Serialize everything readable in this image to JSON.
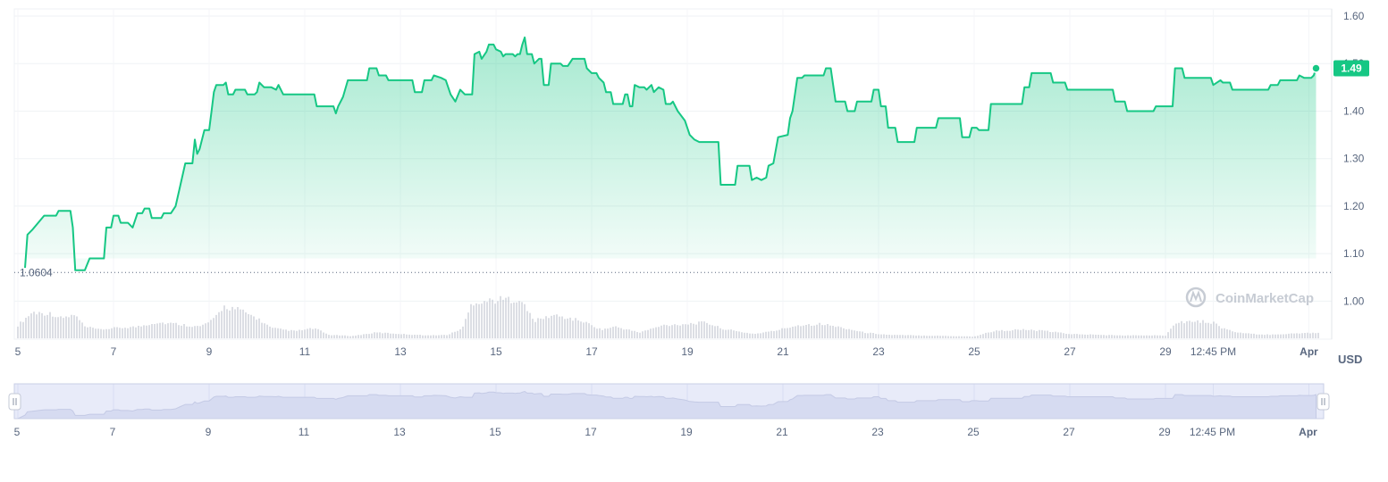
{
  "chart_data": {
    "type": "area",
    "unit": "USD",
    "current_price_label": "1.49",
    "baseline_label": "1.0604",
    "baseline_value": 1.0604,
    "ylim": [
      0.92,
      1.615
    ],
    "y_ticks": [
      {
        "value": 1.6,
        "label": "1.60"
      },
      {
        "value": 1.5,
        "label": "1.50"
      },
      {
        "value": 1.4,
        "label": "1.40"
      },
      {
        "value": 1.3,
        "label": "1.30"
      },
      {
        "value": 1.2,
        "label": "1.20"
      },
      {
        "value": 1.1,
        "label": "1.10"
      },
      {
        "value": 1.0,
        "label": "1.00"
      }
    ],
    "x_ticks": [
      {
        "label": "5",
        "day": 0
      },
      {
        "label": "7",
        "day": 2
      },
      {
        "label": "9",
        "day": 4
      },
      {
        "label": "11",
        "day": 6
      },
      {
        "label": "13",
        "day": 8
      },
      {
        "label": "15",
        "day": 10
      },
      {
        "label": "17",
        "day": 12
      },
      {
        "label": "19",
        "day": 14
      },
      {
        "label": "21",
        "day": 16
      },
      {
        "label": "23",
        "day": 18
      },
      {
        "label": "25",
        "day": 20
      },
      {
        "label": "27",
        "day": 22
      },
      {
        "label": "29",
        "day": 24
      },
      {
        "label": "12:45 PM",
        "day": 25
      },
      {
        "label": "Apr",
        "day": 27,
        "bold": true
      }
    ],
    "series": [
      {
        "color": "#16c784",
        "points": [
          [
            0.15,
            1.07
          ],
          [
            0.2,
            1.14
          ],
          [
            0.3,
            1.15
          ],
          [
            0.55,
            1.18
          ],
          [
            0.8,
            1.18
          ],
          [
            0.85,
            1.19
          ],
          [
            1.1,
            1.19
          ],
          [
            1.15,
            1.155
          ],
          [
            1.2,
            1.065
          ],
          [
            1.4,
            1.065
          ],
          [
            1.5,
            1.09
          ],
          [
            1.8,
            1.09
          ],
          [
            1.85,
            1.155
          ],
          [
            1.95,
            1.155
          ],
          [
            2.0,
            1.18
          ],
          [
            2.1,
            1.18
          ],
          [
            2.15,
            1.165
          ],
          [
            2.3,
            1.165
          ],
          [
            2.4,
            1.155
          ],
          [
            2.5,
            1.185
          ],
          [
            2.6,
            1.185
          ],
          [
            2.65,
            1.195
          ],
          [
            2.75,
            1.195
          ],
          [
            2.8,
            1.175
          ],
          [
            3.0,
            1.175
          ],
          [
            3.05,
            1.185
          ],
          [
            3.2,
            1.185
          ],
          [
            3.3,
            1.2
          ],
          [
            3.4,
            1.245
          ],
          [
            3.5,
            1.29
          ],
          [
            3.65,
            1.29
          ],
          [
            3.7,
            1.34
          ],
          [
            3.75,
            1.31
          ],
          [
            3.8,
            1.32
          ],
          [
            3.9,
            1.36
          ],
          [
            4.0,
            1.36
          ],
          [
            4.05,
            1.4
          ],
          [
            4.1,
            1.44
          ],
          [
            4.15,
            1.455
          ],
          [
            4.3,
            1.455
          ],
          [
            4.35,
            1.46
          ],
          [
            4.4,
            1.435
          ],
          [
            4.5,
            1.435
          ],
          [
            4.55,
            1.445
          ],
          [
            4.75,
            1.445
          ],
          [
            4.8,
            1.435
          ],
          [
            4.95,
            1.435
          ],
          [
            5.0,
            1.44
          ],
          [
            5.05,
            1.46
          ],
          [
            5.15,
            1.45
          ],
          [
            5.3,
            1.45
          ],
          [
            5.4,
            1.445
          ],
          [
            5.45,
            1.455
          ],
          [
            5.55,
            1.435
          ],
          [
            6.2,
            1.435
          ],
          [
            6.25,
            1.41
          ],
          [
            6.6,
            1.41
          ],
          [
            6.65,
            1.395
          ],
          [
            6.7,
            1.41
          ],
          [
            6.8,
            1.43
          ],
          [
            6.9,
            1.465
          ],
          [
            7.3,
            1.465
          ],
          [
            7.35,
            1.49
          ],
          [
            7.5,
            1.49
          ],
          [
            7.55,
            1.475
          ],
          [
            7.7,
            1.475
          ],
          [
            7.75,
            1.465
          ],
          [
            8.25,
            1.465
          ],
          [
            8.3,
            1.44
          ],
          [
            8.45,
            1.44
          ],
          [
            8.5,
            1.465
          ],
          [
            8.65,
            1.465
          ],
          [
            8.7,
            1.475
          ],
          [
            8.85,
            1.47
          ],
          [
            8.95,
            1.465
          ],
          [
            9.05,
            1.435
          ],
          [
            9.15,
            1.42
          ],
          [
            9.25,
            1.445
          ],
          [
            9.35,
            1.435
          ],
          [
            9.5,
            1.435
          ],
          [
            9.55,
            1.52
          ],
          [
            9.65,
            1.525
          ],
          [
            9.7,
            1.51
          ],
          [
            9.8,
            1.525
          ],
          [
            9.85,
            1.54
          ],
          [
            9.95,
            1.54
          ],
          [
            10.0,
            1.53
          ],
          [
            10.1,
            1.525
          ],
          [
            10.15,
            1.515
          ],
          [
            10.2,
            1.52
          ],
          [
            10.35,
            1.52
          ],
          [
            10.4,
            1.515
          ],
          [
            10.45,
            1.52
          ],
          [
            10.5,
            1.52
          ],
          [
            10.55,
            1.54
          ],
          [
            10.6,
            1.555
          ],
          [
            10.65,
            1.52
          ],
          [
            10.75,
            1.52
          ],
          [
            10.8,
            1.5
          ],
          [
            10.9,
            1.51
          ],
          [
            10.95,
            1.51
          ],
          [
            11.0,
            1.455
          ],
          [
            11.1,
            1.455
          ],
          [
            11.15,
            1.5
          ],
          [
            11.35,
            1.5
          ],
          [
            11.4,
            1.495
          ],
          [
            11.5,
            1.495
          ],
          [
            11.6,
            1.51
          ],
          [
            11.85,
            1.51
          ],
          [
            11.9,
            1.49
          ],
          [
            12.0,
            1.48
          ],
          [
            12.1,
            1.48
          ],
          [
            12.15,
            1.47
          ],
          [
            12.25,
            1.46
          ],
          [
            12.3,
            1.44
          ],
          [
            12.4,
            1.44
          ],
          [
            12.45,
            1.415
          ],
          [
            12.65,
            1.415
          ],
          [
            12.7,
            1.435
          ],
          [
            12.75,
            1.435
          ],
          [
            12.8,
            1.41
          ],
          [
            12.85,
            1.41
          ],
          [
            12.9,
            1.455
          ],
          [
            13.0,
            1.45
          ],
          [
            13.1,
            1.45
          ],
          [
            13.15,
            1.445
          ],
          [
            13.25,
            1.455
          ],
          [
            13.3,
            1.44
          ],
          [
            13.4,
            1.45
          ],
          [
            13.5,
            1.445
          ],
          [
            13.55,
            1.415
          ],
          [
            13.65,
            1.415
          ],
          [
            13.7,
            1.42
          ],
          [
            13.8,
            1.4
          ],
          [
            13.95,
            1.38
          ],
          [
            14.05,
            1.35
          ],
          [
            14.15,
            1.34
          ],
          [
            14.25,
            1.335
          ],
          [
            14.65,
            1.335
          ],
          [
            14.7,
            1.245
          ],
          [
            15.0,
            1.245
          ],
          [
            15.05,
            1.285
          ],
          [
            15.3,
            1.285
          ],
          [
            15.35,
            1.255
          ],
          [
            15.45,
            1.26
          ],
          [
            15.55,
            1.255
          ],
          [
            15.65,
            1.26
          ],
          [
            15.7,
            1.285
          ],
          [
            15.8,
            1.29
          ],
          [
            15.9,
            1.345
          ],
          [
            16.1,
            1.35
          ],
          [
            16.15,
            1.385
          ],
          [
            16.2,
            1.4
          ],
          [
            16.3,
            1.47
          ],
          [
            16.4,
            1.47
          ],
          [
            16.45,
            1.475
          ],
          [
            16.85,
            1.475
          ],
          [
            16.9,
            1.49
          ],
          [
            17.0,
            1.49
          ],
          [
            17.05,
            1.455
          ],
          [
            17.1,
            1.42
          ],
          [
            17.3,
            1.42
          ],
          [
            17.35,
            1.4
          ],
          [
            17.5,
            1.4
          ],
          [
            17.55,
            1.42
          ],
          [
            17.85,
            1.42
          ],
          [
            17.9,
            1.445
          ],
          [
            18.0,
            1.445
          ],
          [
            18.05,
            1.41
          ],
          [
            18.15,
            1.41
          ],
          [
            18.2,
            1.365
          ],
          [
            18.35,
            1.365
          ],
          [
            18.4,
            1.335
          ],
          [
            18.75,
            1.335
          ],
          [
            18.8,
            1.365
          ],
          [
            19.2,
            1.365
          ],
          [
            19.25,
            1.385
          ],
          [
            19.7,
            1.385
          ],
          [
            19.75,
            1.345
          ],
          [
            19.9,
            1.345
          ],
          [
            19.95,
            1.365
          ],
          [
            20.05,
            1.365
          ],
          [
            20.1,
            1.36
          ],
          [
            20.3,
            1.36
          ],
          [
            20.35,
            1.415
          ],
          [
            21.0,
            1.415
          ],
          [
            21.05,
            1.45
          ],
          [
            21.15,
            1.45
          ],
          [
            21.2,
            1.48
          ],
          [
            21.6,
            1.48
          ],
          [
            21.65,
            1.46
          ],
          [
            21.9,
            1.46
          ],
          [
            21.95,
            1.445
          ],
          [
            22.9,
            1.445
          ],
          [
            22.95,
            1.42
          ],
          [
            23.15,
            1.42
          ],
          [
            23.2,
            1.4
          ],
          [
            23.75,
            1.4
          ],
          [
            23.8,
            1.41
          ],
          [
            24.15,
            1.41
          ],
          [
            24.2,
            1.49
          ],
          [
            24.35,
            1.49
          ],
          [
            24.4,
            1.47
          ],
          [
            24.95,
            1.47
          ],
          [
            25.0,
            1.455
          ],
          [
            25.15,
            1.465
          ],
          [
            25.2,
            1.46
          ],
          [
            25.35,
            1.46
          ],
          [
            25.4,
            1.445
          ],
          [
            26.15,
            1.445
          ],
          [
            26.2,
            1.455
          ],
          [
            26.35,
            1.455
          ],
          [
            26.4,
            1.465
          ],
          [
            26.75,
            1.465
          ],
          [
            26.8,
            1.475
          ],
          [
            26.9,
            1.47
          ],
          [
            27.05,
            1.47
          ],
          [
            27.1,
            1.475
          ],
          [
            27.15,
            1.49
          ]
        ]
      }
    ],
    "volume": {
      "color": "#b8bec9",
      "knots": [
        [
          0,
          0.45
        ],
        [
          0.3,
          0.9
        ],
        [
          0.7,
          0.85
        ],
        [
          0.9,
          0.7
        ],
        [
          1.2,
          0.8
        ],
        [
          1.4,
          0.4
        ],
        [
          1.7,
          0.3
        ],
        [
          2.0,
          0.35
        ],
        [
          2.5,
          0.4
        ],
        [
          2.9,
          0.55
        ],
        [
          3.3,
          0.5
        ],
        [
          3.8,
          0.4
        ],
        [
          4.1,
          0.65
        ],
        [
          4.3,
          1.1
        ],
        [
          4.6,
          1.0
        ],
        [
          5.0,
          0.7
        ],
        [
          5.3,
          0.35
        ],
        [
          5.8,
          0.25
        ],
        [
          6.2,
          0.35
        ],
        [
          6.5,
          0.12
        ],
        [
          7.0,
          0.08
        ],
        [
          7.5,
          0.2
        ],
        [
          8.0,
          0.15
        ],
        [
          8.6,
          0.1
        ],
        [
          9.0,
          0.12
        ],
        [
          9.3,
          0.35
        ],
        [
          9.5,
          1.25
        ],
        [
          10.2,
          1.35
        ],
        [
          10.5,
          1.35
        ],
        [
          10.8,
          0.6
        ],
        [
          11.2,
          0.8
        ],
        [
          11.8,
          0.6
        ],
        [
          12.2,
          0.3
        ],
        [
          12.5,
          0.4
        ],
        [
          13.0,
          0.2
        ],
        [
          13.5,
          0.45
        ],
        [
          14.0,
          0.5
        ],
        [
          14.4,
          0.55
        ],
        [
          14.7,
          0.35
        ],
        [
          15.0,
          0.25
        ],
        [
          15.4,
          0.15
        ],
        [
          15.8,
          0.25
        ],
        [
          16.3,
          0.45
        ],
        [
          16.8,
          0.5
        ],
        [
          17.3,
          0.35
        ],
        [
          17.7,
          0.2
        ],
        [
          18.2,
          0.12
        ],
        [
          18.8,
          0.1
        ],
        [
          19.5,
          0.08
        ],
        [
          20.0,
          0.06
        ],
        [
          20.4,
          0.25
        ],
        [
          21.0,
          0.3
        ],
        [
          21.5,
          0.25
        ],
        [
          22.0,
          0.15
        ],
        [
          23.0,
          0.1
        ],
        [
          24.0,
          0.1
        ],
        [
          24.2,
          0.55
        ],
        [
          24.6,
          0.6
        ],
        [
          25.0,
          0.55
        ],
        [
          25.2,
          0.35
        ],
        [
          25.5,
          0.2
        ],
        [
          26.0,
          0.12
        ],
        [
          26.5,
          0.15
        ],
        [
          27.2,
          0.2
        ]
      ]
    },
    "watermark": "CoinMarketCap"
  }
}
